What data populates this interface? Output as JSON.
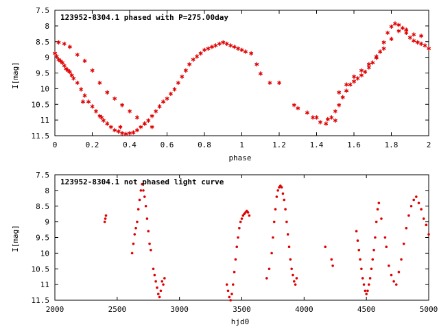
{
  "chart_data": [
    {
      "type": "scatter",
      "title": "123952-8304.1 phased with P=275.00day",
      "xlabel": "phase",
      "ylabel": "I[mag]",
      "xlim": [
        0,
        2
      ],
      "ylim": [
        11.5,
        7.5
      ],
      "y_inverted": true,
      "xticks": [
        "0",
        "0.2",
        "0.4",
        "0.6",
        "0.8",
        "1",
        "1.2",
        "1.4",
        "1.6",
        "1.8",
        "2"
      ],
      "yticks": [
        "7.5",
        "8",
        "8.5",
        "9",
        "9.5",
        "10",
        "10.5",
        "11",
        "11.5"
      ],
      "marker": "star",
      "color": "#e00000",
      "series": [
        {
          "x": [
            0.0,
            0.01,
            0.02,
            0.03,
            0.04,
            0.05,
            0.06,
            0.07,
            0.08,
            0.09,
            0.1,
            0.12,
            0.14,
            0.16,
            0.18,
            0.2,
            0.22,
            0.24,
            0.26,
            0.28,
            0.3,
            0.32,
            0.34,
            0.36,
            0.38,
            0.4,
            0.42,
            0.44,
            0.46,
            0.48,
            0.5,
            0.52,
            0.54,
            0.56,
            0.58,
            0.6,
            0.62,
            0.64,
            0.66,
            0.68,
            0.7,
            0.72,
            0.74,
            0.76,
            0.78,
            0.8,
            0.82,
            0.84,
            0.86,
            0.88,
            0.9,
            0.92,
            0.94,
            0.96,
            0.98,
            1.0,
            1.02,
            1.05,
            1.08,
            1.1,
            1.15,
            1.2,
            1.28,
            1.3,
            1.35,
            1.38,
            1.42,
            1.45,
            1.48,
            1.5,
            1.52,
            1.54,
            1.56,
            1.58,
            1.6,
            1.62,
            1.64,
            1.66,
            1.68,
            1.7,
            1.72,
            1.74,
            1.76,
            1.78,
            1.8,
            1.82,
            1.84,
            1.86,
            1.88,
            1.9,
            1.92,
            1.94,
            1.96,
            1.98,
            2.0,
            0.02,
            0.05,
            0.08,
            0.12,
            0.16,
            0.2,
            0.24,
            0.28,
            0.32,
            0.36,
            0.4,
            0.44,
            0.48,
            0.52,
            1.52,
            1.56,
            1.6,
            1.64,
            1.68,
            1.72,
            1.76,
            1.8,
            1.84,
            1.88,
            1.92,
            1.96,
            0.15,
            0.25,
            0.35,
            1.4,
            1.46,
            1.5
          ],
          "y": [
            8.85,
            8.95,
            9.05,
            9.1,
            9.15,
            9.25,
            9.35,
            9.4,
            9.45,
            9.55,
            9.65,
            9.8,
            10.0,
            10.2,
            10.4,
            10.55,
            10.7,
            10.85,
            11.0,
            11.1,
            11.2,
            11.3,
            11.35,
            11.4,
            11.42,
            11.4,
            11.38,
            11.3,
            11.2,
            11.1,
            11.0,
            10.85,
            10.7,
            10.55,
            10.4,
            10.3,
            10.15,
            10.0,
            9.8,
            9.6,
            9.4,
            9.2,
            9.05,
            8.95,
            8.85,
            8.75,
            8.7,
            8.65,
            8.6,
            8.55,
            8.5,
            8.55,
            8.6,
            8.65,
            8.7,
            8.75,
            8.8,
            8.85,
            9.2,
            9.5,
            9.8,
            9.8,
            10.5,
            10.6,
            10.75,
            10.9,
            11.05,
            11.1,
            10.9,
            10.7,
            10.5,
            10.25,
            10.05,
            9.85,
            9.75,
            9.65,
            9.55,
            9.45,
            9.3,
            9.15,
            9.0,
            8.8,
            8.5,
            8.2,
            8.0,
            7.9,
            7.95,
            8.05,
            8.2,
            8.35,
            8.45,
            8.5,
            8.55,
            8.6,
            8.7,
            8.5,
            8.55,
            8.65,
            8.9,
            9.1,
            9.4,
            9.8,
            10.1,
            10.3,
            10.5,
            10.7,
            10.9,
            11.1,
            11.2,
            10.1,
            9.85,
            9.6,
            9.4,
            9.2,
            8.95,
            8.7,
            8.4,
            8.15,
            8.1,
            8.25,
            8.3,
            10.4,
            10.9,
            11.2,
            10.9,
            10.95,
            11.0
          ]
        }
      ]
    },
    {
      "type": "scatter",
      "title": "123952-8304.1 not phased light curve",
      "xlabel": "hjd0",
      "ylabel": "I[mag]",
      "xlim": [
        2000,
        5000
      ],
      "ylim": [
        11.5,
        7.5
      ],
      "y_inverted": true,
      "xticks": [
        "2000",
        "2500",
        "3000",
        "3500",
        "4000",
        "4500",
        "5000"
      ],
      "yticks": [
        "7.5",
        "8",
        "8.5",
        "9",
        "9.5",
        "10",
        "10.5",
        "11",
        "11.5"
      ],
      "marker": "dot",
      "color": "#e00000",
      "series": [
        {
          "x": [
            2400,
            2405,
            2410,
            2620,
            2630,
            2640,
            2650,
            2660,
            2670,
            2680,
            2690,
            2700,
            2710,
            2720,
            2730,
            2740,
            2750,
            2760,
            2770,
            2790,
            2800,
            2810,
            2820,
            2830,
            2840,
            2850,
            2860,
            2870,
            2880,
            3380,
            3390,
            3400,
            3410,
            3420,
            3430,
            3440,
            3450,
            3460,
            3470,
            3480,
            3490,
            3500,
            3510,
            3520,
            3530,
            3540,
            3550,
            3560,
            3700,
            3720,
            3740,
            3750,
            3760,
            3770,
            3780,
            3790,
            3800,
            3810,
            3820,
            3830,
            3840,
            3850,
            3860,
            3870,
            3880,
            3890,
            3900,
            3910,
            3920,
            3930,
            3940,
            4170,
            4220,
            4230,
            4420,
            4430,
            4440,
            4450,
            4460,
            4470,
            4480,
            4490,
            4500,
            4510,
            4520,
            4530,
            4540,
            4550,
            4560,
            4570,
            4580,
            4590,
            4600,
            4620,
            4650,
            4660,
            4680,
            4700,
            4720,
            4740,
            4760,
            4780,
            4800,
            4820,
            4840,
            4860,
            4880,
            4900,
            4920,
            4940,
            4960,
            4980,
            5000
          ],
          "y": [
            9.0,
            8.9,
            8.8,
            10.0,
            9.7,
            9.4,
            9.2,
            9.0,
            8.6,
            8.3,
            8.0,
            7.8,
            8.0,
            8.2,
            8.5,
            8.9,
            9.3,
            9.7,
            9.9,
            10.5,
            10.7,
            10.9,
            11.1,
            11.3,
            11.4,
            11.2,
            10.9,
            11.0,
            10.8,
            11.0,
            11.2,
            11.4,
            11.5,
            11.3,
            11.0,
            10.6,
            10.2,
            9.8,
            9.5,
            9.2,
            9.0,
            8.9,
            8.8,
            8.75,
            8.7,
            8.65,
            8.7,
            8.8,
            10.8,
            10.5,
            10.0,
            9.5,
            9.0,
            8.6,
            8.2,
            8.0,
            7.9,
            7.85,
            7.9,
            8.1,
            8.3,
            8.6,
            9.0,
            9.4,
            9.8,
            10.2,
            10.5,
            10.7,
            10.9,
            11.0,
            10.8,
            9.8,
            10.2,
            10.4,
            9.3,
            9.6,
            9.9,
            10.2,
            10.5,
            10.8,
            11.0,
            11.2,
            11.3,
            11.2,
            11.0,
            10.8,
            10.5,
            10.2,
            9.9,
            9.5,
            9.0,
            8.6,
            8.4,
            8.9,
            9.5,
            9.8,
            10.4,
            10.7,
            10.9,
            11.0,
            10.6,
            10.2,
            9.7,
            9.2,
            8.8,
            8.5,
            8.3,
            8.2,
            8.4,
            8.6,
            8.9,
            9.1,
            9.4
          ]
        }
      ]
    }
  ]
}
